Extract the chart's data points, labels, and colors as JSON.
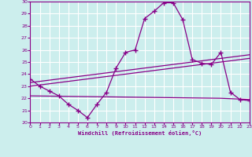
{
  "xlabel": "Windchill (Refroidissement éolien,°C)",
  "background_color": "#cceeed",
  "grid_color": "#ffffff",
  "line_color": "#880088",
  "xlim": [
    0,
    23
  ],
  "ylim": [
    20,
    30
  ],
  "yticks": [
    20,
    21,
    22,
    23,
    24,
    25,
    26,
    27,
    28,
    29,
    30
  ],
  "xticks": [
    0,
    1,
    2,
    3,
    4,
    5,
    6,
    7,
    8,
    9,
    10,
    11,
    12,
    13,
    14,
    15,
    16,
    17,
    18,
    19,
    20,
    21,
    22,
    23
  ],
  "curve1_x": [
    0,
    1,
    2,
    3,
    4,
    5,
    6,
    7,
    8,
    9,
    10,
    11,
    12,
    13,
    14,
    15,
    16,
    17,
    18,
    19,
    20,
    21,
    22,
    23
  ],
  "curve1_y": [
    23.6,
    23.0,
    22.6,
    22.2,
    21.5,
    21.0,
    20.4,
    21.5,
    22.5,
    24.5,
    25.8,
    26.0,
    28.6,
    29.2,
    29.9,
    29.9,
    28.5,
    25.2,
    24.9,
    24.8,
    25.8,
    22.5,
    21.9,
    21.8
  ],
  "curve2_x": [
    0,
    23
  ],
  "curve2_y": [
    23.0,
    25.3
  ],
  "curve3_x": [
    0,
    23
  ],
  "curve3_y": [
    23.3,
    25.6
  ],
  "curve4_x": [
    0,
    20,
    23
  ],
  "curve4_y": [
    22.2,
    22.0,
    21.9
  ]
}
